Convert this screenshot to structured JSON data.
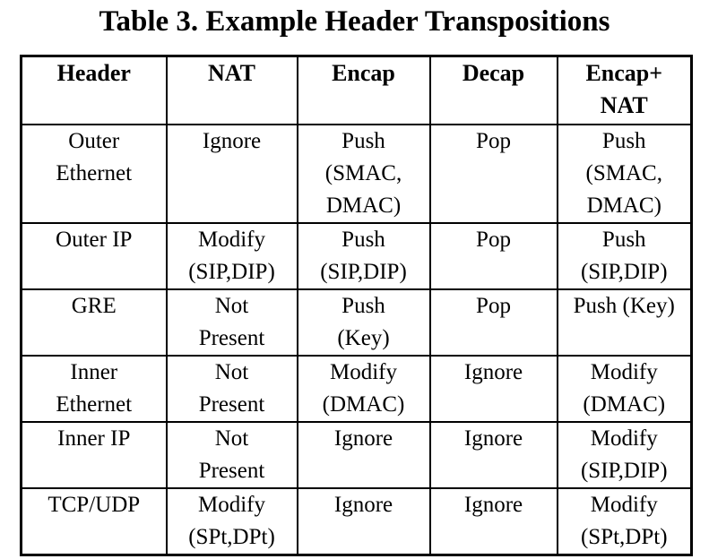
{
  "caption": "Table 3. Example Header Transpositions",
  "table": {
    "headers": [
      "Header",
      "NAT",
      "Encap",
      "Decap",
      "Encap+\nNAT"
    ],
    "rows": [
      [
        "Outer\nEthernet",
        "Ignore",
        "Push\n(SMAC,\nDMAC)",
        "Pop",
        "Push\n(SMAC,\nDMAC)"
      ],
      [
        "Outer IP",
        "Modify\n(SIP,DIP)",
        "Push\n(SIP,DIP)",
        "Pop",
        "Push\n(SIP,DIP)"
      ],
      [
        "GRE",
        "Not\nPresent",
        "Push\n(Key)",
        "Pop",
        "Push (Key)"
      ],
      [
        "Inner\nEthernet",
        "Not\nPresent",
        "Modify\n(DMAC)",
        "Ignore",
        "Modify\n(DMAC)"
      ],
      [
        "Inner IP",
        "Not\nPresent",
        "Ignore",
        "Ignore",
        "Modify\n(SIP,DIP)"
      ],
      [
        "TCP/UDP",
        "Modify\n(SPt,DPt)",
        "Ignore",
        "Ignore",
        "Modify\n(SPt,DPt)"
      ]
    ]
  }
}
